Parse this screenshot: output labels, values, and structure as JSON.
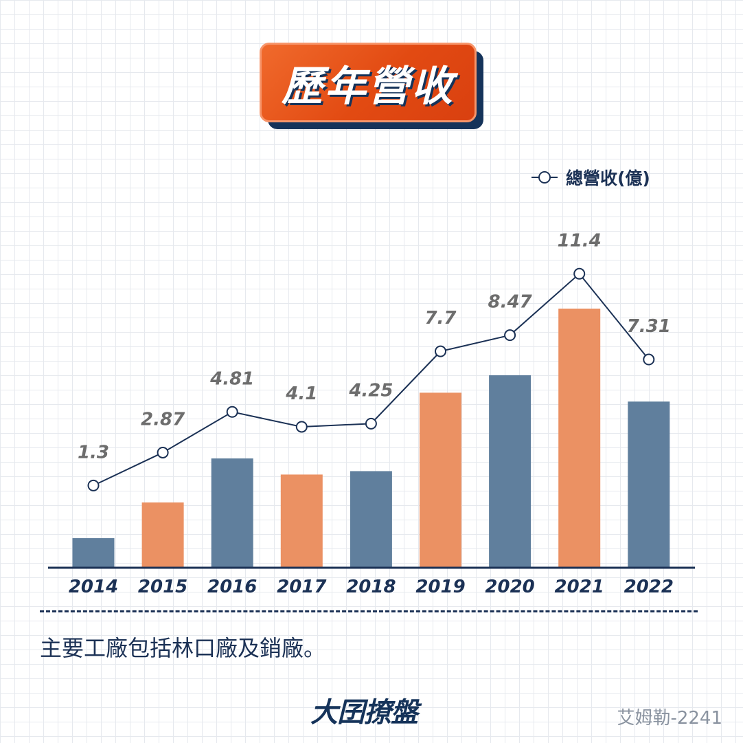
{
  "title": "歷年營收",
  "legend_label": "總營收(億)",
  "note": "主要工廠包括林口廠及銷廠。",
  "logo": "大囝撩盤",
  "credit": "艾姆勒-2241",
  "colors": {
    "bar_blue": "#607f9d",
    "bar_orange": "#eb9163",
    "line": "#1b3155",
    "label_gray": "#6d6d6d",
    "axis": "#1b3155"
  },
  "chart_data": {
    "type": "bar",
    "categories": [
      "2014",
      "2015",
      "2016",
      "2017",
      "2018",
      "2019",
      "2020",
      "2021",
      "2022"
    ],
    "series": [
      {
        "name": "總營收(億)",
        "type": "line",
        "values": [
          1.3,
          2.87,
          4.81,
          4.1,
          4.25,
          7.7,
          8.47,
          11.4,
          7.31
        ]
      },
      {
        "type": "bar",
        "values": [
          1.3,
          2.87,
          4.81,
          4.1,
          4.25,
          7.7,
          8.47,
          11.4,
          7.31
        ]
      }
    ],
    "data_labels": [
      "1.3",
      "2.87",
      "4.81",
      "4.1",
      "4.25",
      "7.7",
      "8.47",
      "11.4",
      "7.31"
    ],
    "bar_colors": [
      "blue",
      "orange",
      "blue",
      "orange",
      "blue",
      "orange",
      "blue",
      "orange",
      "blue"
    ],
    "xlabel": "",
    "ylabel": "",
    "grid": false,
    "legend": "top-right"
  }
}
